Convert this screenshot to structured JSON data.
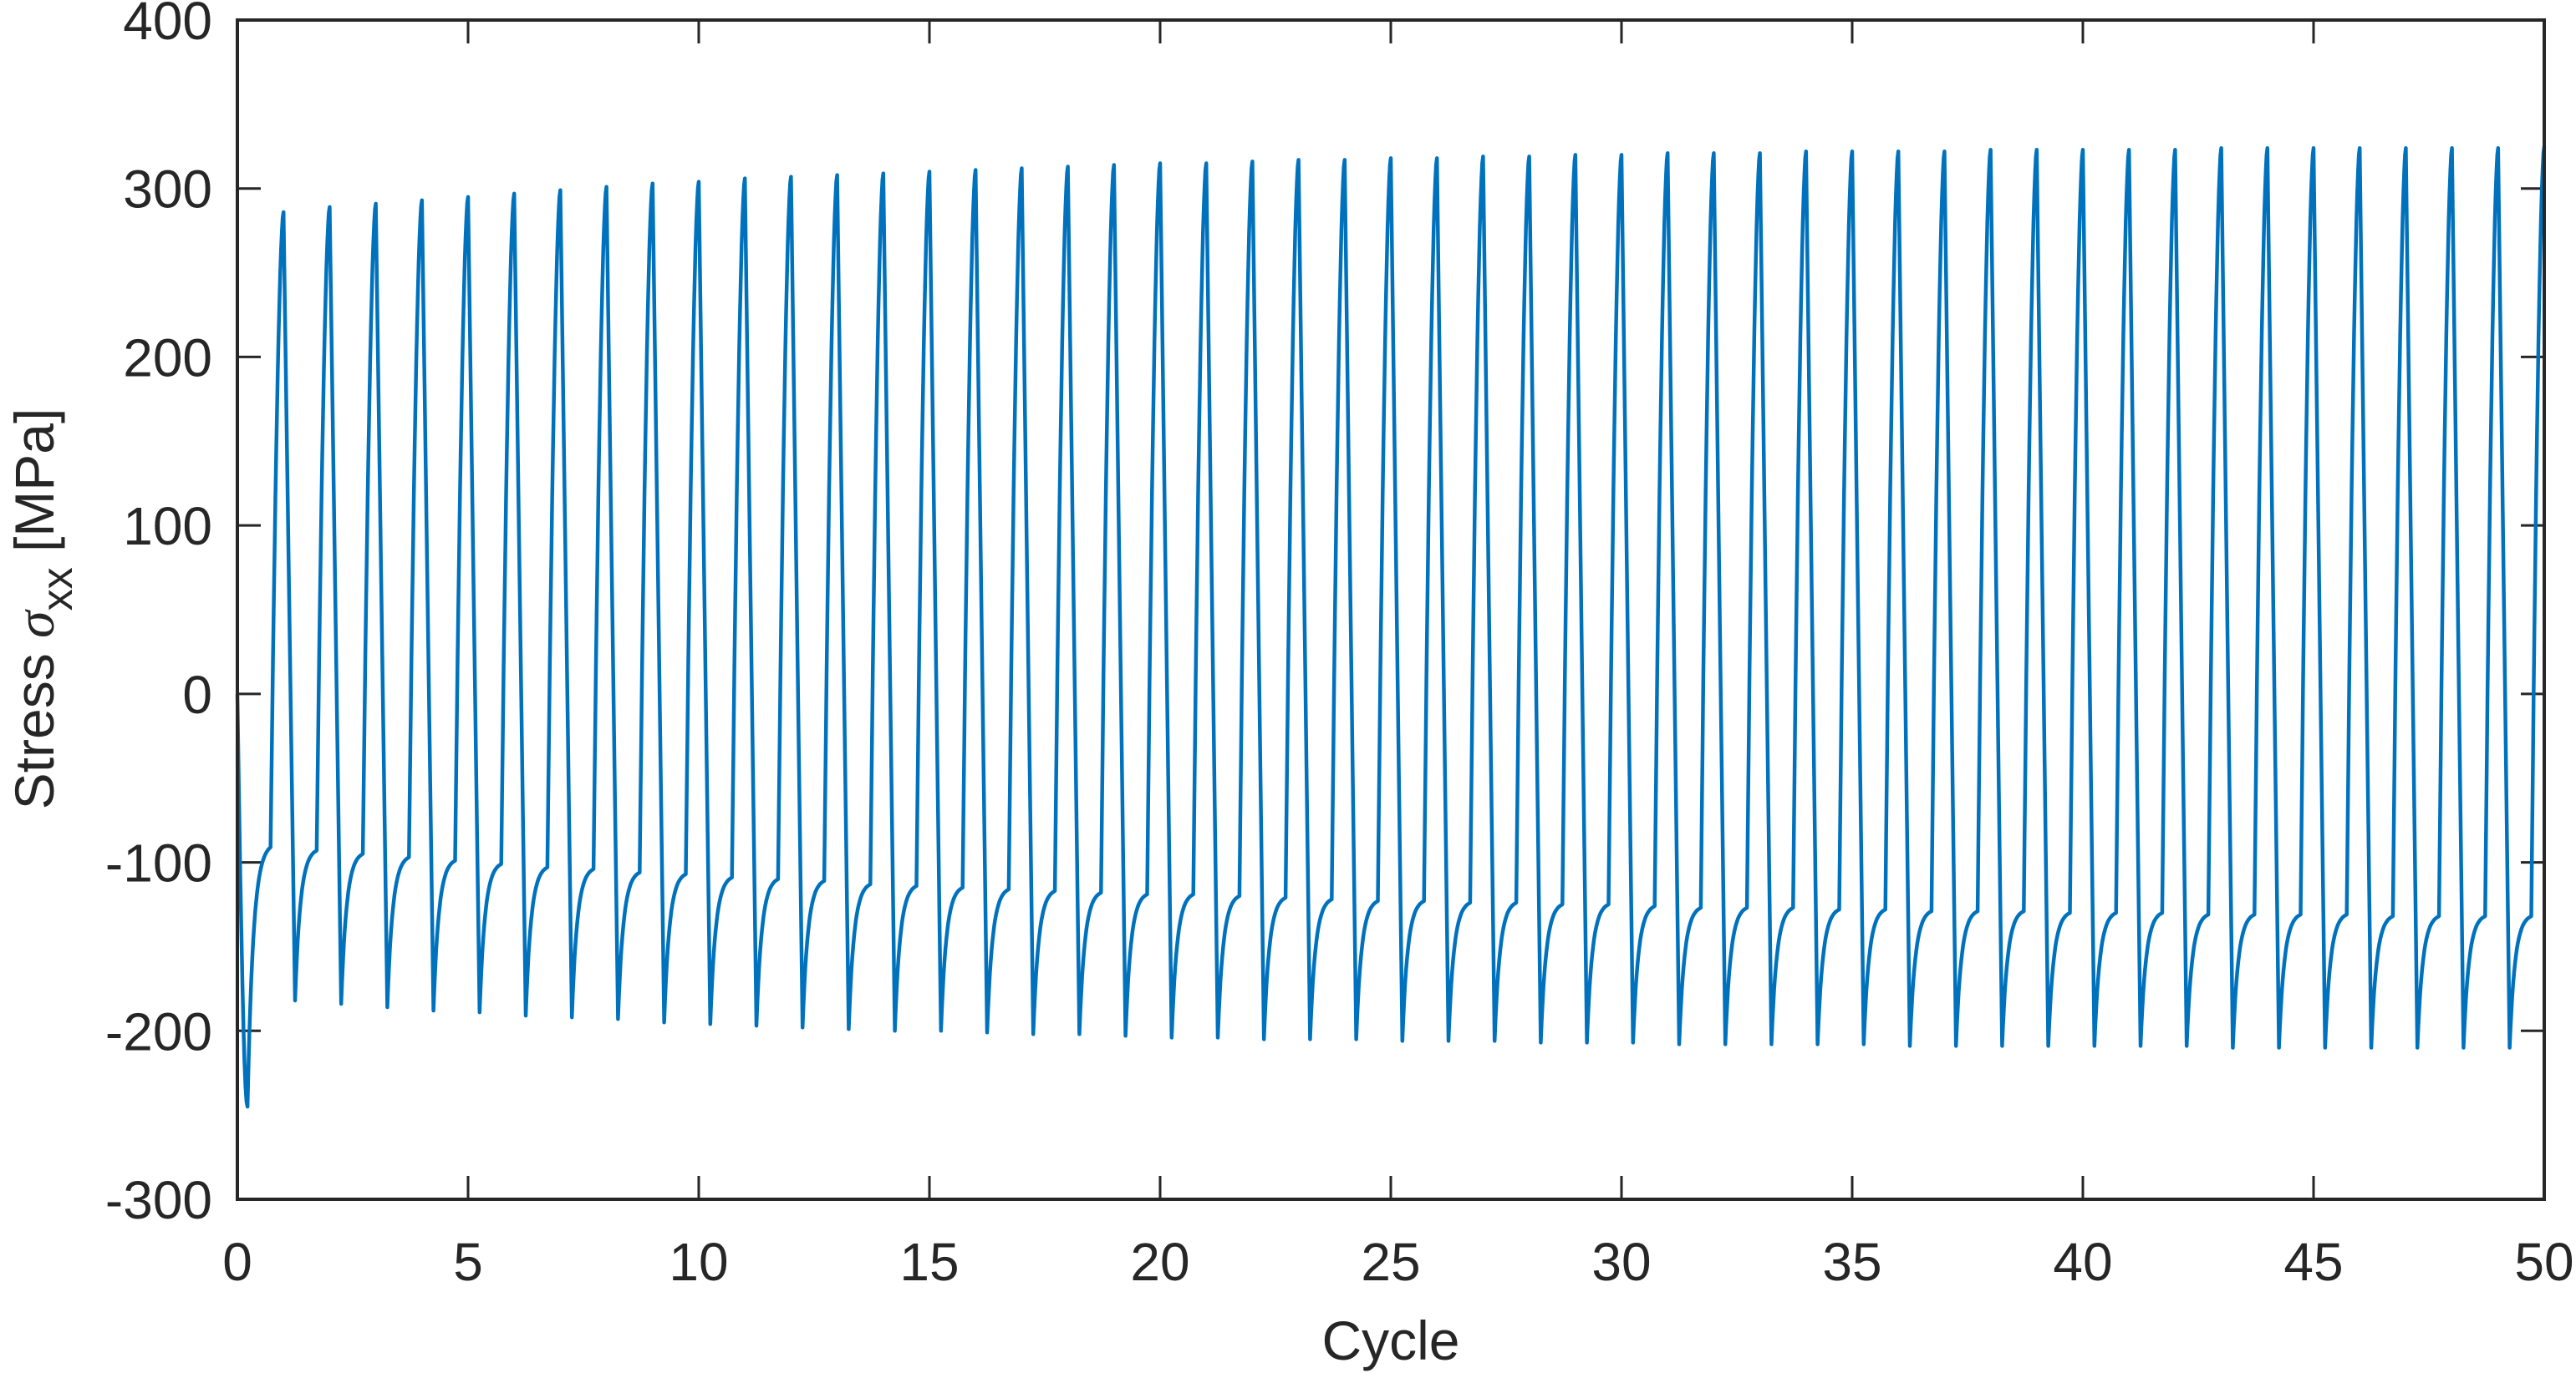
{
  "chart_data": {
    "type": "line",
    "xlabel": "Cycle",
    "ylabel": {
      "prefix": "Stress ",
      "symbol": "σ",
      "subscript": "xx",
      "unit": " [MPa]"
    },
    "xlim": [
      0,
      50
    ],
    "ylim": [
      -300,
      400
    ],
    "xticks": [
      "0",
      "5",
      "10",
      "15",
      "20",
      "25",
      "30",
      "35",
      "40",
      "45",
      "50"
    ],
    "yticks": [
      "-300",
      "-200",
      "-100",
      "0",
      "100",
      "200",
      "300",
      "400"
    ],
    "grid": false,
    "box": true,
    "line_color": "#0072BD",
    "series": [
      {
        "start_value": 0,
        "initial_minimum": -245,
        "peaks_at_integer_cycles_1_to_50": [
          286,
          289,
          291,
          293,
          295,
          297,
          299,
          301,
          303,
          304,
          306,
          307,
          308,
          309,
          310,
          311,
          312,
          313,
          314,
          315,
          315,
          316,
          317,
          317,
          318,
          318,
          319,
          319,
          320,
          320,
          321,
          321,
          321,
          322,
          322,
          322,
          322,
          323,
          323,
          323,
          323,
          323,
          324,
          324,
          324,
          324,
          324,
          324,
          324,
          325
        ],
        "minima_after_peaks_1_to_49": [
          -182,
          -184,
          -186,
          -188,
          -189,
          -191,
          -192,
          -193,
          -195,
          -196,
          -197,
          -198,
          -199,
          -200,
          -200,
          -201,
          -202,
          -202,
          -203,
          -204,
          -204,
          -205,
          -205,
          -205,
          -206,
          -206,
          -206,
          -207,
          -207,
          -207,
          -208,
          -208,
          -208,
          -208,
          -208,
          -209,
          -209,
          -209,
          -209,
          -209,
          -209,
          -209,
          -210,
          -210,
          -210,
          -210,
          -210,
          -210,
          -210
        ],
        "plateau_before_rise_cycles_0_to_49": [
          -91,
          -93,
          -95,
          -97,
          -99,
          -101,
          -103,
          -104,
          -106,
          -107,
          -109,
          -110,
          -111,
          -113,
          -114,
          -115,
          -116,
          -117,
          -118,
          -119,
          -119,
          -120,
          -121,
          -122,
          -123,
          -123,
          -124,
          -124,
          -125,
          -125,
          -126,
          -127,
          -127,
          -127,
          -128,
          -128,
          -129,
          -129,
          -129,
          -130,
          -130,
          -130,
          -131,
          -131,
          -131,
          -131,
          -132,
          -132,
          -132,
          -132
        ]
      }
    ]
  }
}
